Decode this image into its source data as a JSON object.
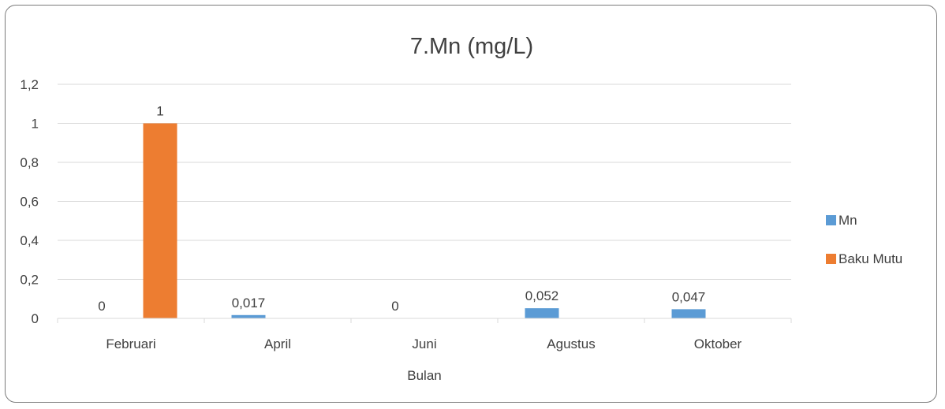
{
  "chart_data": {
    "type": "bar",
    "title": "7.Mn (mg/L)",
    "xlabel": "Bulan",
    "ylabel": "",
    "categories": [
      "Februari",
      "April",
      "Juni",
      "Agustus",
      "Oktober"
    ],
    "series": [
      {
        "name": "Mn",
        "color": "#5B9BD5",
        "values": [
          0,
          0.017,
          0,
          0.052,
          0.047
        ],
        "labels": [
          "0",
          "0,017",
          "0",
          "0,052",
          "0,047"
        ]
      },
      {
        "name": "Baku Mutu",
        "color": "#ED7D31",
        "values": [
          1,
          null,
          null,
          null,
          null
        ],
        "labels": [
          "1",
          null,
          null,
          null,
          null
        ]
      }
    ],
    "ylim": [
      0,
      1.2
    ],
    "yticks": [
      0,
      0.2,
      0.4,
      0.6,
      0.8,
      1,
      1.2
    ],
    "ytick_labels": [
      "0",
      "0,2",
      "0,4",
      "0,6",
      "0,8",
      "1",
      "1,2"
    ],
    "grid": true,
    "legend": "right"
  }
}
